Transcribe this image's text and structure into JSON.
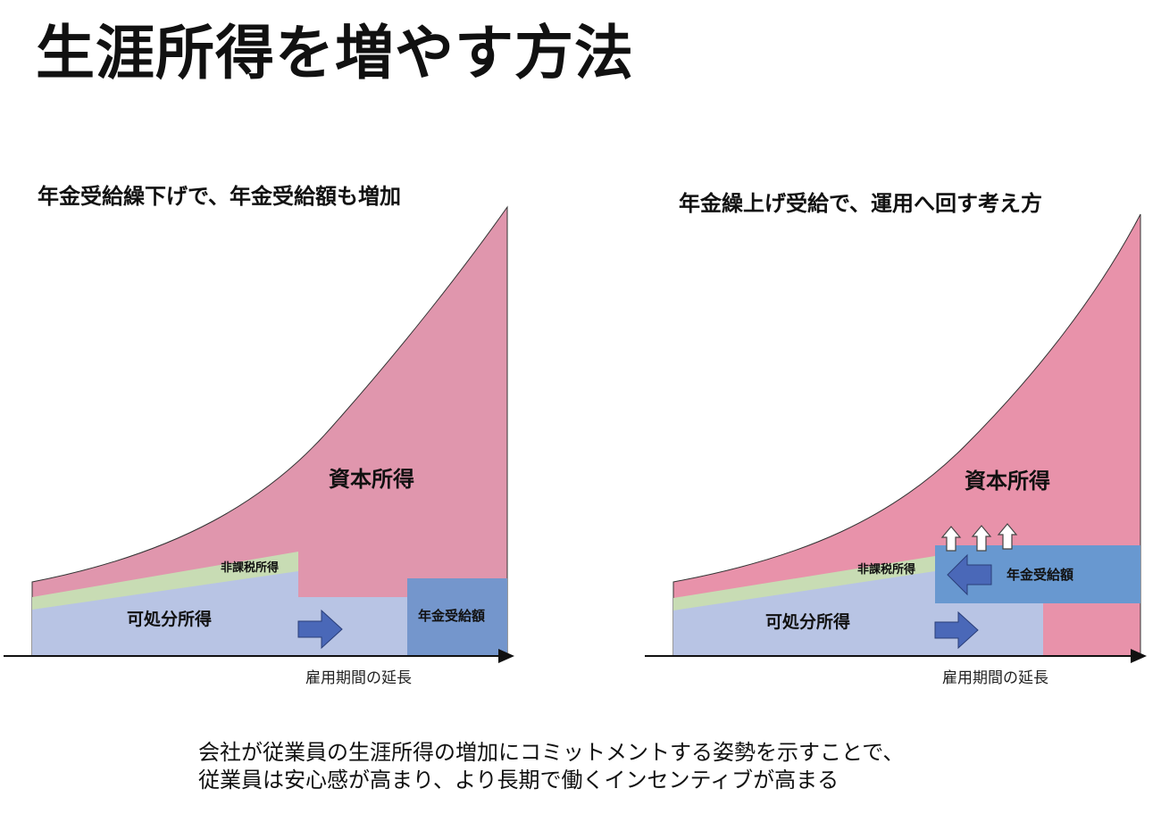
{
  "title": "生涯所得を増やす方法",
  "left_panel": {
    "title": "年金受給繰下げで、年金受給額も増加",
    "capital_income_label": "資本所得",
    "tax_free_label": "非課税所得",
    "disposable_label": "可処分所得",
    "pension_label": "年金受給額",
    "axis_label": "雇用期間の延長"
  },
  "right_panel": {
    "title": "年金繰上げ受給で、運用へ回す考え方",
    "capital_income_label": "資本所得",
    "tax_free_label": "非課税所得",
    "disposable_label": "可処分所得",
    "pension_label": "年金受給額",
    "axis_label": "雇用期間の延長"
  },
  "caption": {
    "line1": "会社が従業員の生涯所得の増加にコミットメントする姿勢を示すことで、",
    "line2": "従業員は安心感が高まり、より長期で働くインセンティブが高まる"
  },
  "colors": {
    "capital_left": "#e096ad",
    "capital_right": "#e892aa",
    "tax_free": "#c8dcb4",
    "disposable": "#b8c4e4",
    "pension_left": "#7496cc",
    "pension_right": "#6898d0",
    "arrow": "#4a68b8"
  }
}
